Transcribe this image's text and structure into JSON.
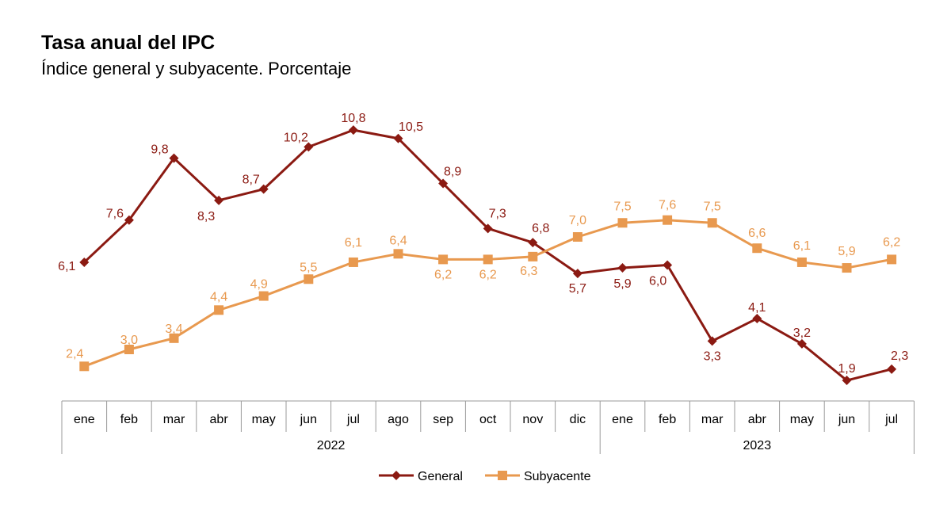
{
  "chart_data": {
    "type": "line",
    "title": "Tasa anual del IPC",
    "subtitle": "Índice general y subyacente. Porcentaje",
    "categories": [
      "ene",
      "feb",
      "mar",
      "abr",
      "may",
      "jun",
      "jul",
      "ago",
      "sep",
      "oct",
      "nov",
      "dic",
      "ene",
      "feb",
      "mar",
      "abr",
      "may",
      "jun",
      "jul"
    ],
    "year_groups": [
      {
        "label": "2022",
        "count": 12
      },
      {
        "label": "2023",
        "count": 7
      }
    ],
    "series": [
      {
        "name": "General",
        "color": "#8b1a12",
        "marker": "diamond",
        "values": [
          6.1,
          7.6,
          9.8,
          8.3,
          8.7,
          10.2,
          10.8,
          10.5,
          8.9,
          7.3,
          6.8,
          5.7,
          5.9,
          6.0,
          3.3,
          4.1,
          3.2,
          1.9,
          2.3
        ],
        "labels": [
          "6,1",
          "7,6",
          "9,8",
          "8,3",
          "8,7",
          "10,2",
          "10,8",
          "10,5",
          "8,9",
          "7,3",
          "6,8",
          "5,7",
          "5,9",
          "6,0",
          "3,3",
          "4,1",
          "3,2",
          "1,9",
          "2,3"
        ]
      },
      {
        "name": "Subyacente",
        "color": "#e8994f",
        "marker": "square",
        "values": [
          2.4,
          3.0,
          3.4,
          4.4,
          4.9,
          5.5,
          6.1,
          6.4,
          6.2,
          6.2,
          6.3,
          7.0,
          7.5,
          7.6,
          7.5,
          6.6,
          6.1,
          5.9,
          6.2
        ],
        "labels": [
          "2,4",
          "3,0",
          "3,4",
          "4,4",
          "4,9",
          "5,5",
          "6,1",
          "6,4",
          "6,2",
          "6,2",
          "6,3",
          "7,0",
          "7,5",
          "7,6",
          "7,5",
          "6,6",
          "6,1",
          "5,9",
          "6,2"
        ]
      }
    ],
    "legend": "bottom-center",
    "grid": false
  }
}
